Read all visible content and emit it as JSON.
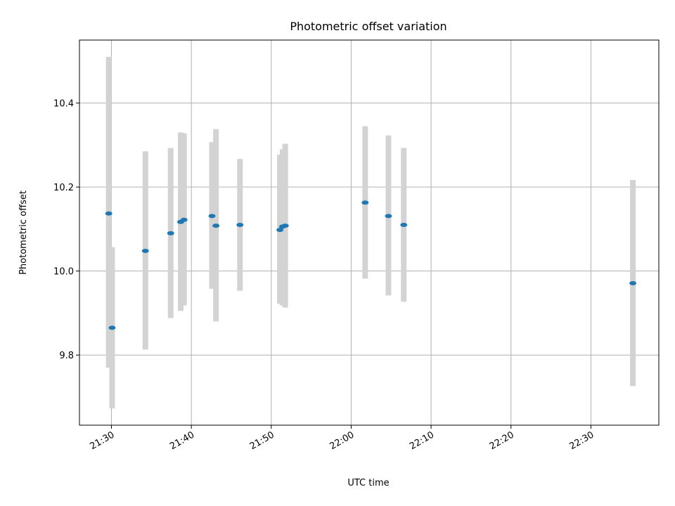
{
  "chart_data": {
    "type": "scatter",
    "title": "Photometric offset variation",
    "xlabel": "UTC time",
    "ylabel": "Photometric offset",
    "xlim": [
      "21:26:00",
      "22:38:30"
    ],
    "ylim": [
      9.633,
      10.55
    ],
    "x_ticks": [
      "21:30",
      "21:40",
      "21:50",
      "22:00",
      "22:10",
      "22:20",
      "22:30"
    ],
    "y_ticks": [
      "9.8",
      "10.0",
      "10.2",
      "10.4"
    ],
    "grid": true,
    "x_tick_rotation": "30",
    "points": [
      {
        "x": "21:29:40",
        "y": 10.137,
        "ylow": 9.77,
        "yhigh": 10.51
      },
      {
        "x": "21:30:05",
        "y": 9.865,
        "ylow": 9.673,
        "yhigh": 10.057
      },
      {
        "x": "21:34:15",
        "y": 10.048,
        "ylow": 9.813,
        "yhigh": 10.285
      },
      {
        "x": "21:37:25",
        "y": 10.09,
        "ylow": 9.888,
        "yhigh": 10.293
      },
      {
        "x": "21:38:40",
        "y": 10.117,
        "ylow": 9.905,
        "yhigh": 10.33
      },
      {
        "x": "21:39:05",
        "y": 10.122,
        "ylow": 9.918,
        "yhigh": 10.328
      },
      {
        "x": "21:42:35",
        "y": 10.131,
        "ylow": 9.958,
        "yhigh": 10.307
      },
      {
        "x": "21:43:05",
        "y": 10.108,
        "ylow": 9.88,
        "yhigh": 10.338
      },
      {
        "x": "21:46:05",
        "y": 10.11,
        "ylow": 9.953,
        "yhigh": 10.267
      },
      {
        "x": "21:51:05",
        "y": 10.098,
        "ylow": 9.922,
        "yhigh": 10.277
      },
      {
        "x": "21:51:25",
        "y": 10.106,
        "ylow": 9.918,
        "yhigh": 10.29
      },
      {
        "x": "21:51:45",
        "y": 10.108,
        "ylow": 9.913,
        "yhigh": 10.303
      },
      {
        "x": "22:01:45",
        "y": 10.163,
        "ylow": 9.982,
        "yhigh": 10.345
      },
      {
        "x": "22:04:40",
        "y": 10.131,
        "ylow": 9.942,
        "yhigh": 10.323
      },
      {
        "x": "22:06:35",
        "y": 10.11,
        "ylow": 9.927,
        "yhigh": 10.293
      },
      {
        "x": "22:35:15",
        "y": 9.971,
        "ylow": 9.726,
        "yhigh": 10.217
      }
    ]
  },
  "colors": {
    "point": "#1f77b4",
    "error_bar": "#d3d3d3",
    "grid": "#b0b0b0",
    "axes": "#000000"
  }
}
